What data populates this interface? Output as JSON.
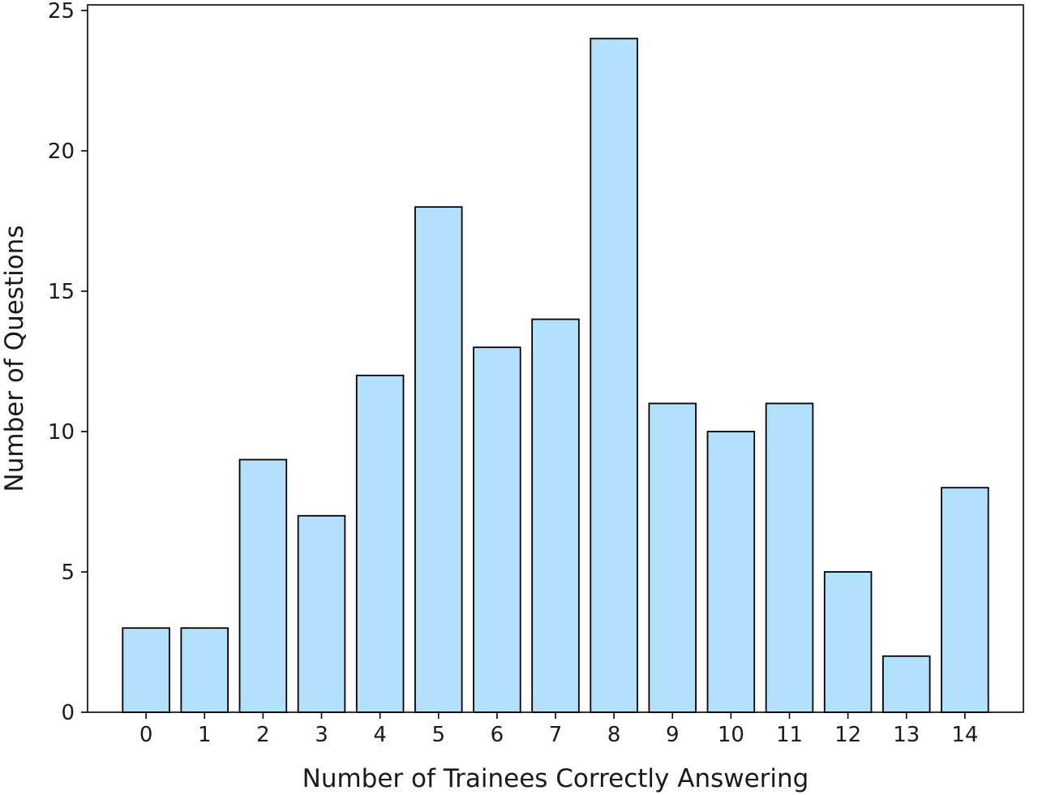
{
  "chart_data": {
    "type": "bar",
    "title": "",
    "xlabel": "Number of Trainees Correctly Answering",
    "ylabel": "Number of Questions",
    "categories": [
      "0",
      "1",
      "2",
      "3",
      "4",
      "5",
      "6",
      "7",
      "8",
      "9",
      "10",
      "11",
      "12",
      "13",
      "14"
    ],
    "values": [
      3,
      3,
      9,
      7,
      12,
      18,
      13,
      14,
      24,
      11,
      10,
      11,
      5,
      2,
      8
    ],
    "ylim": [
      0,
      25.2
    ],
    "yticks": [
      0,
      5,
      10,
      15,
      20,
      25
    ],
    "grid": false,
    "legend": "none",
    "colors": {
      "bar_fill": "#b3e0fc",
      "bar_edge": "#000000",
      "axes": "#000000",
      "text": "#1a1a1a"
    }
  }
}
